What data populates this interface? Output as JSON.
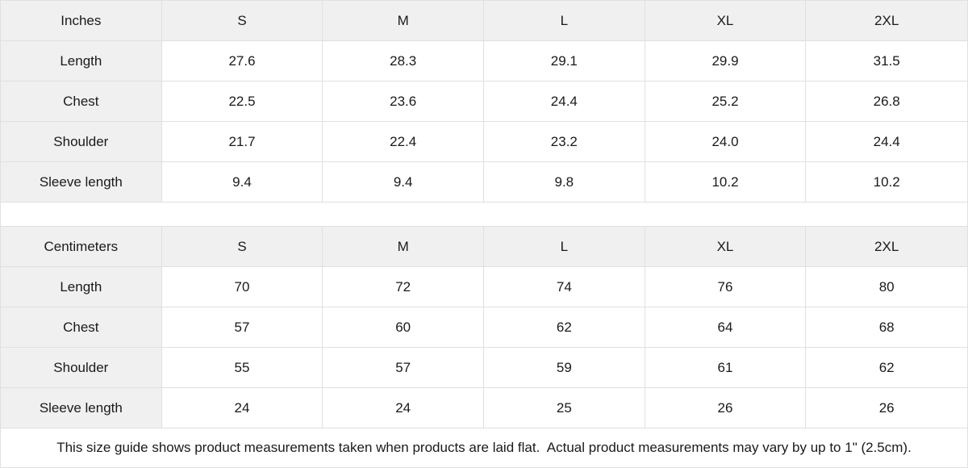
{
  "colors": {
    "header_bg": "#f0f0f0",
    "border": "#e0e0e0",
    "text": "#1a1a1a",
    "background": "#ffffff"
  },
  "chart_data": [
    {
      "type": "table",
      "unit_label": "Inches",
      "columns": [
        "S",
        "M",
        "L",
        "XL",
        "2XL"
      ],
      "rows": [
        {
          "label": "Length",
          "values": [
            "27.6",
            "28.3",
            "29.1",
            "29.9",
            "31.5"
          ]
        },
        {
          "label": "Chest",
          "values": [
            "22.5",
            "23.6",
            "24.4",
            "25.2",
            "26.8"
          ]
        },
        {
          "label": "Shoulder",
          "values": [
            "21.7",
            "22.4",
            "23.2",
            "24.0",
            "24.4"
          ]
        },
        {
          "label": "Sleeve length",
          "values": [
            "9.4",
            "9.4",
            "9.8",
            "10.2",
            "10.2"
          ]
        }
      ]
    },
    {
      "type": "table",
      "unit_label": "Centimeters",
      "columns": [
        "S",
        "M",
        "L",
        "XL",
        "2XL"
      ],
      "rows": [
        {
          "label": "Length",
          "values": [
            "70",
            "72",
            "74",
            "76",
            "80"
          ]
        },
        {
          "label": "Chest",
          "values": [
            "57",
            "60",
            "62",
            "64",
            "68"
          ]
        },
        {
          "label": "Shoulder",
          "values": [
            "55",
            "57",
            "59",
            "61",
            "62"
          ]
        },
        {
          "label": "Sleeve length",
          "values": [
            "24",
            "24",
            "25",
            "26",
            "26"
          ]
        }
      ]
    }
  ],
  "footer": {
    "note": "This size guide shows product measurements taken when products are laid flat.  Actual product measurements may vary by up to 1\" (2.5cm)."
  }
}
